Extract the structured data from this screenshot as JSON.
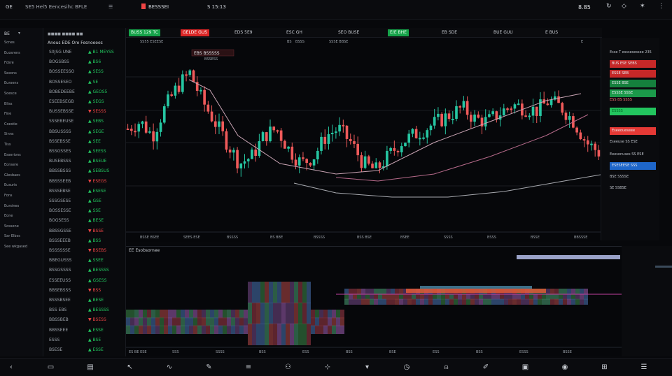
{
  "topbar": {
    "app_title": "GE",
    "menu_text": "SE5 Hel5 Eencesihc BFLE",
    "center_text": "BESSSEI",
    "clock": "S 15:13",
    "status": "8.85"
  },
  "ticker": [
    {
      "label": "BUSS 129 TC",
      "style": "green"
    },
    {
      "label": "GELDE GUS",
      "style": "red"
    },
    {
      "label": "EDS 5E9",
      "style": "dark"
    },
    {
      "label": "ESC GH",
      "style": "dark"
    },
    {
      "label": "SEO BUSE",
      "style": "dark"
    },
    {
      "label": "E/E BHE",
      "style": "green"
    },
    {
      "label": "EB SDE",
      "style": "dark"
    },
    {
      "label": "BUE GUU",
      "style": "dark"
    },
    {
      "label": "E BUS",
      "style": "dark"
    }
  ],
  "left_sidebar": {
    "header": "BE",
    "items": [
      "Scnes",
      "Euosrens",
      "Fdsre",
      "Sexons",
      "Euroens",
      "Soesce",
      "Bliss",
      "Fine",
      "Coestie",
      "Sinns",
      "Tiss",
      "Esserions",
      "Eonsere",
      "Glesbaes",
      "Eusuris",
      "Fons",
      "Eursines",
      "Eone",
      "Sossene",
      "Sar Elbss",
      "See wkgased"
    ]
  },
  "watchlist": {
    "header": "Aneus  EDE  Ore Fesnoeeos",
    "rows": [
      {
        "sym": "S0JSG UNE",
        "chg": "B1 MEYSS",
        "dir": "up"
      },
      {
        "sym": "BOGSBSS",
        "chg": "BS6",
        "dir": "up"
      },
      {
        "sym": "BOSSEESSO",
        "chg": "SESS",
        "dir": "up"
      },
      {
        "sym": "BOSSESEO",
        "chg": "SE",
        "dir": "up"
      },
      {
        "sym": "BOBEDEEBE",
        "chg": "GEOS5",
        "dir": "up"
      },
      {
        "sym": "ESEEBSEGB",
        "chg": "SEGS",
        "dir": "up"
      },
      {
        "sym": "BUSSEBSSE",
        "chg": "SESSS",
        "dir": "dn"
      },
      {
        "sym": "SSSEBEUSE",
        "chg": "SEBS",
        "dir": "up"
      },
      {
        "sym": "BBSUSSSS",
        "chg": "SEGE",
        "dir": "up"
      },
      {
        "sym": "BSSEBSSE",
        "chg": "SEE",
        "dir": "up"
      },
      {
        "sym": "BSSGSSES",
        "chg": "SEESS",
        "dir": "up"
      },
      {
        "sym": "BUSEBSSS",
        "chg": "BSEUE",
        "dir": "up"
      },
      {
        "sym": "BBSSBSSS",
        "chg": "SEBSUS",
        "dir": "up"
      },
      {
        "sym": "BBSSSEEB",
        "chg": "ESEGS",
        "dir": "dn"
      },
      {
        "sym": "BSSSEBSE",
        "chg": "ESESE",
        "dir": "up"
      },
      {
        "sym": "SSSGSESE",
        "chg": "GSE",
        "dir": "up"
      },
      {
        "sym": "BOSSESSE",
        "chg": "SSE",
        "dir": "up"
      },
      {
        "sym": "BOGSESS",
        "chg": "BESE",
        "dir": "up"
      },
      {
        "sym": "BBSSGSSE",
        "chg": "BSSE",
        "dir": "dn"
      },
      {
        "sym": "BSSSEEEB",
        "chg": "BSS",
        "dir": "up"
      },
      {
        "sym": "BSSSSSSE",
        "chg": "BSEBS",
        "dir": "dn"
      },
      {
        "sym": "BBEGUSSS",
        "chg": "SSEE",
        "dir": "up"
      },
      {
        "sym": "BSSGSSSS",
        "chg": "BESSSS",
        "dir": "up"
      },
      {
        "sym": "ESSEEUSS",
        "chg": "GSESS",
        "dir": "up"
      },
      {
        "sym": "BBSEBSSS",
        "chg": "BSS",
        "dir": "dn"
      },
      {
        "sym": "BSSSBSEE",
        "chg": "BESE",
        "dir": "up"
      },
      {
        "sym": "BSS EBS",
        "chg": "BESSSS",
        "dir": "up"
      },
      {
        "sym": "BBSSBEB",
        "chg": "BSESS",
        "dir": "dn"
      },
      {
        "sym": "BBSSEEE",
        "chg": "ESSE",
        "dir": "up"
      },
      {
        "sym": "ESSS",
        "chg": "BSE",
        "dir": "up"
      },
      {
        "sym": "BSESE",
        "chg": "ESSE",
        "dir": "up"
      }
    ]
  },
  "chart": {
    "overlay_label": "EBS BSSSSS",
    "overlay_sub": "BSSESS",
    "top_tags": [
      "SS55 ESEESE",
      "BS",
      "BSSS",
      "SSSE BBSE",
      "E"
    ],
    "xaxis_labels": [
      "BSSE BSEE",
      "SEES ESE",
      "BSSSS",
      "BS BBE",
      "BSSSS",
      "BSS BSE",
      "BSEE",
      "SSSS",
      "BSSS",
      "BSSE",
      "BBSSSE"
    ],
    "colors": {
      "up": "#26c6a2",
      "down": "#ef5a5a",
      "ma1": "#c9a4b4",
      "ma2": "#b56a8a",
      "ma3": "#a8aab0"
    }
  },
  "right_panel": {
    "title": "Esse T esssesessee 235",
    "entries": [
      {
        "label": "BUS ESE",
        "value": "SEBS",
        "style": "red"
      },
      {
        "label": "ESSE",
        "value": "SEB",
        "style": "red"
      },
      {
        "label": "ESSE",
        "value": "BSE",
        "style": "green"
      },
      {
        "label": "ESSSE",
        "value": "SSSE",
        "style": "greenbox"
      },
      {
        "label": "ESS BS",
        "value": "SSSS",
        "style": "redtxt"
      },
      {
        "label": "ESSSS",
        "value": "",
        "style": "greenbar"
      },
      {
        "label": "Eseeoueseee",
        "value": "",
        "style": "redbar"
      },
      {
        "label": "Eseeuse SS",
        "value": "ESE",
        "style": "plain"
      },
      {
        "label": "Eeesonuses",
        "value": "SS ESE",
        "style": "plain"
      },
      {
        "label": "ESESEESE",
        "value": "SSS",
        "style": "bluebar"
      },
      {
        "label": "BSE",
        "value": "SSSSE",
        "style": "plain"
      },
      {
        "label": "SE SSBSE",
        "value": "",
        "style": "plain"
      }
    ]
  },
  "lower_panel": {
    "title": "EE Esobsornee",
    "xaxis_labels": [
      "ES BE ESE",
      "SSS",
      "SSSS",
      "BSS",
      "ESS",
      "BSS",
      "BSE",
      "ESS",
      "BSS",
      "ESSS",
      "BSSE"
    ]
  },
  "bottom_icons": [
    "back-icon",
    "folder-icon",
    "chart-icon",
    "pointer-icon",
    "wave-icon",
    "edit-icon",
    "layers-icon",
    "group-icon",
    "crosshair-icon",
    "dropdown-icon",
    "clock-icon",
    "bell-icon",
    "pen-icon",
    "camera-icon",
    "record-icon",
    "cart-icon",
    "menu-icon"
  ]
}
